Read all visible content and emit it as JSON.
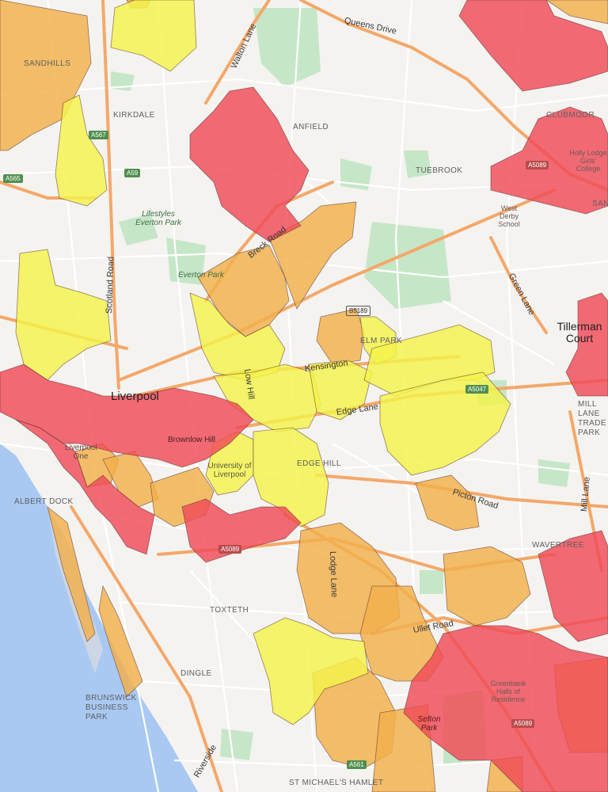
{
  "map": {
    "colors": {
      "land": "#f4f3f0",
      "water": "#a9c9f2",
      "park": "#c6e6c8",
      "major_road": "#f3a86a",
      "minor_road": "#ffffff",
      "red_zone": "#f04a57",
      "orange_zone": "#f1b04a",
      "yellow_zone": "#f4f34a"
    },
    "city_label": "Liverpool",
    "area_labels": [
      "SANDHILLS",
      "KIRKDALE",
      "ANFIELD",
      "CLUBMOOR",
      "TUEBROOK",
      "ELM PARK",
      "EDGE HILL",
      "ALBERT DOCK",
      "TOXTETH",
      "DINGLE",
      "WAVERTREE",
      "BRUNSWICK BUSINESS PARK",
      "ST MICHAEL'S HAMLET",
      "MILL LANE TRADE PARK",
      "SAND"
    ],
    "road_labels": [
      "Queens Drive",
      "Walton Lane",
      "Scotland Road",
      "Breck Road",
      "Green Lane",
      "Low Hill",
      "Kensington",
      "Edge Lane",
      "Picton Road",
      "Lodge Lane",
      "Mill Lane",
      "Ullet Road",
      "Riverside"
    ],
    "park_labels": [
      "Everton Park",
      "Lifestyles Everton Park",
      "Sefton Park",
      "Brownlow Hill",
      "University of Liverpool",
      "Liverpool One",
      "Tillerman Court"
    ],
    "poi_labels": [
      "Holly Lodge Girls' College",
      "West Derby School",
      "Greenbank Halls of Residence"
    ],
    "road_shields": [
      "A565",
      "A567",
      "A59",
      "A5089",
      "B5189",
      "A5047",
      "A5089",
      "A5089",
      "A561"
    ]
  }
}
